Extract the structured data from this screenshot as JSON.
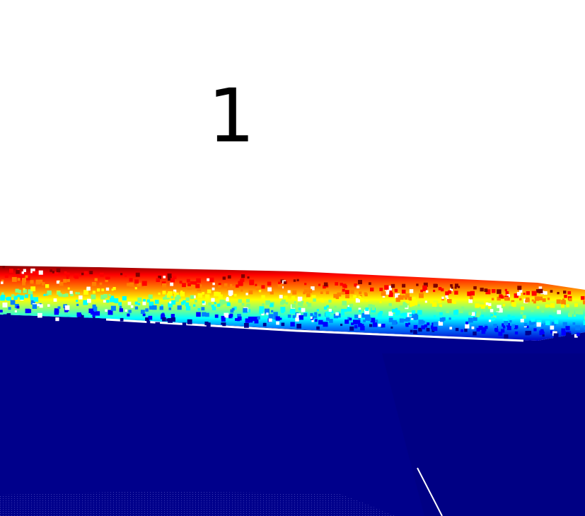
{
  "label": "1",
  "colors": {
    "background": "#ffffff",
    "ground": "#00008b",
    "ground_shade": "#000080",
    "colormap": [
      "#00008f",
      "#0000ff",
      "#0080ff",
      "#00ffff",
      "#80ff80",
      "#ffff00",
      "#ff8000",
      "#ff0000",
      "#800000"
    ]
  }
}
